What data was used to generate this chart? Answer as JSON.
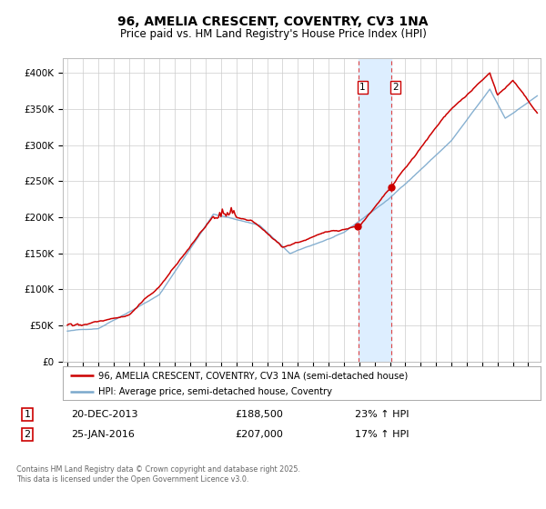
{
  "title": "96, AMELIA CRESCENT, COVENTRY, CV3 1NA",
  "subtitle": "Price paid vs. HM Land Registry's House Price Index (HPI)",
  "legend_line1": "96, AMELIA CRESCENT, COVENTRY, CV3 1NA (semi-detached house)",
  "legend_line2": "HPI: Average price, semi-detached house, Coventry",
  "footer": "Contains HM Land Registry data © Crown copyright and database right 2025.\nThis data is licensed under the Open Government Licence v3.0.",
  "annotation1_label": "1",
  "annotation1_date": "20-DEC-2013",
  "annotation1_price": "£188,500",
  "annotation1_hpi": "23% ↑ HPI",
  "annotation2_label": "2",
  "annotation2_date": "25-JAN-2016",
  "annotation2_price": "£207,000",
  "annotation2_hpi": "17% ↑ HPI",
  "red_color": "#cc0000",
  "blue_color": "#7aa8cc",
  "highlight_color": "#ddeeff",
  "background_color": "#ffffff",
  "grid_color": "#cccccc",
  "ylim": [
    0,
    420000
  ],
  "yticks": [
    0,
    50000,
    100000,
    150000,
    200000,
    250000,
    300000,
    350000,
    400000
  ],
  "ytick_labels": [
    "£0",
    "£50K",
    "£100K",
    "£150K",
    "£200K",
    "£250K",
    "£300K",
    "£350K",
    "£400K"
  ],
  "date1_year": 2013.958,
  "date2_year": 2016.083,
  "price1": 188500,
  "price2": 207000
}
